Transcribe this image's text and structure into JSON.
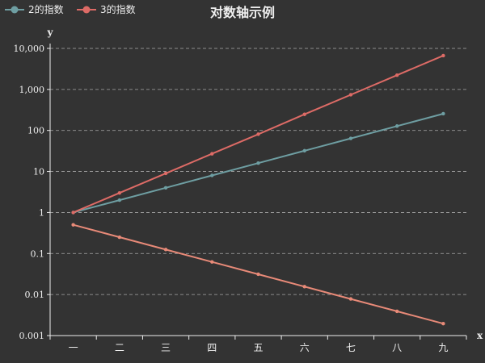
{
  "chart_data": {
    "type": "line",
    "title": "对数轴示例",
    "xlabel": "x",
    "ylabel": "y",
    "y_scale": "log",
    "ylim": [
      0.001,
      10000
    ],
    "yticks": [
      0.001,
      0.01,
      0.1,
      1,
      10,
      100,
      1000,
      10000
    ],
    "ytick_labels": [
      "0.001",
      "0.01",
      "0.1",
      "1",
      "10",
      "100",
      "1,000",
      "10,000"
    ],
    "grid": "horizontal dashed",
    "legend_position": "top-left",
    "categories": [
      "一",
      "二",
      "三",
      "四",
      "五",
      "六",
      "七",
      "八",
      "九"
    ],
    "series": [
      {
        "name": "2的指数",
        "color": "#6e9ea2",
        "values": [
          1,
          2,
          4,
          8,
          16,
          32,
          64,
          128,
          256
        ]
      },
      {
        "name": "3的指数",
        "color": "#dd6b66",
        "values": [
          1,
          3,
          9,
          27,
          81,
          247,
          741,
          2223,
          6669
        ]
      },
      {
        "color": "#e88a78",
        "values": [
          0.5,
          0.25,
          0.125,
          0.0625,
          0.03125,
          0.015625,
          0.0078125,
          0.00390625,
          0.001953125
        ]
      }
    ]
  }
}
